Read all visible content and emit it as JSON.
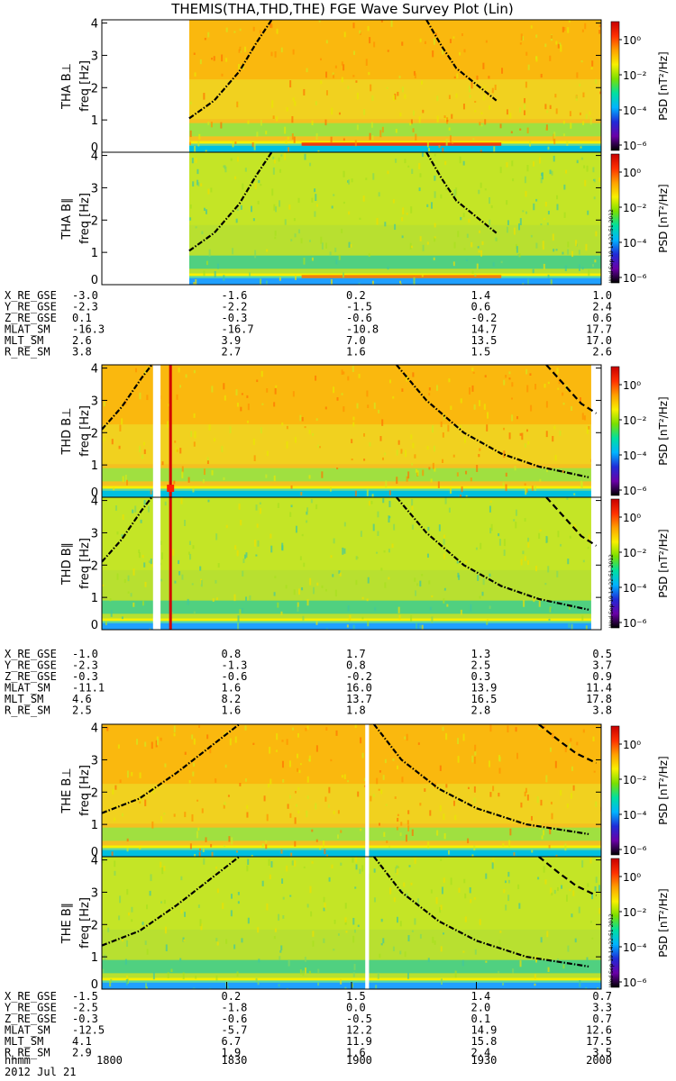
{
  "title": "THEMIS(THA,THD,THE) FGE Wave Survey Plot (Lin)",
  "colorbar": {
    "label": "PSD [nT²/Hz]",
    "ticks": [
      "10⁰",
      "10⁻²",
      "10⁻⁴",
      "10⁻⁶"
    ],
    "scale": "log",
    "stops": [
      "#000000",
      "#6a00a8",
      "#1f2bd8",
      "#00b4ff",
      "#00e0a0",
      "#7ae000",
      "#f8f000",
      "#ffa000",
      "#ff3000",
      "#c80000"
    ]
  },
  "stamp": "Wed Sep 19 14:22:51 2012",
  "time_axis": {
    "ticks": [
      "1800",
      "1830",
      "1900",
      "1930",
      "2000"
    ],
    "label": "hhmm",
    "date": "2012 Jul 21"
  },
  "orbit_row_labels": [
    "X_RE_GSE",
    "Y_RE_GSE",
    "Z_RE_GSE",
    "MLAT_SM",
    "MLT_SM",
    "R_RE_SM"
  ],
  "chart_data": [
    {
      "type": "heatmap",
      "probe": "THA",
      "panels": [
        {
          "ylabel": "THA B⊥",
          "unit": "freq [Hz]",
          "ylim": [
            0,
            4.1
          ],
          "yticks": [
            "0",
            "1",
            "2",
            "3",
            "4"
          ]
        },
        {
          "ylabel": "THA B∥",
          "unit": "freq [Hz]",
          "ylim": [
            0,
            4.1
          ],
          "yticks": [
            "0",
            "1",
            "2",
            "3",
            "4"
          ]
        }
      ],
      "data_start_fraction": 0.35,
      "strong_band_freq_hz": 0.25,
      "gyro_curves": [
        {
          "x": [
            0.35,
            0.45,
            0.55,
            0.62,
            0.68
          ],
          "y": [
            1.05,
            1.6,
            2.5,
            3.4,
            4.1
          ]
        },
        {
          "x": [
            1.3,
            1.36,
            1.42,
            1.5,
            1.58
          ],
          "y": [
            4.1,
            3.3,
            2.6,
            2.1,
            1.6
          ]
        }
      ],
      "orbit": [
        [
          "-3.0",
          "-1.6",
          "0.2",
          "1.4",
          "1.0"
        ],
        [
          "-2.3",
          "-2.2",
          "-1.5",
          "0.6",
          "2.4"
        ],
        [
          "0.1",
          "-0.3",
          "-0.6",
          "-0.2",
          "0.6"
        ],
        [
          "-16.3",
          "-16.7",
          "-10.8",
          "14.7",
          "17.7"
        ],
        [
          "2.6",
          "3.9",
          "7.0",
          "13.5",
          "17.0"
        ],
        [
          "3.8",
          "2.7",
          "1.6",
          "1.5",
          "2.6"
        ]
      ]
    },
    {
      "type": "heatmap",
      "probe": "THD",
      "panels": [
        {
          "ylabel": "THD B⊥",
          "unit": "freq [Hz]",
          "ylim": [
            0,
            4.1
          ],
          "yticks": [
            "0",
            "1",
            "2",
            "3",
            "4"
          ]
        },
        {
          "ylabel": "THD B∥",
          "unit": "freq [Hz]",
          "ylim": [
            0,
            4.1
          ],
          "yticks": [
            "0",
            "1",
            "2",
            "3",
            "4"
          ]
        }
      ],
      "gaps": [
        [
          0.205,
          0.235
        ],
        [
          1.96,
          2.0
        ]
      ],
      "spike": 0.275,
      "gyro_curves": [
        {
          "x": [
            0.0,
            0.08,
            0.16,
            0.2
          ],
          "y": [
            2.1,
            2.8,
            3.7,
            4.1
          ]
        },
        {
          "x": [
            1.18,
            1.3,
            1.45,
            1.6,
            1.75,
            1.95
          ],
          "y": [
            4.1,
            3.0,
            2.0,
            1.35,
            0.95,
            0.62
          ]
        },
        {
          "x": [
            1.78,
            1.85,
            1.92,
            1.98
          ],
          "y": [
            4.1,
            3.5,
            2.9,
            2.6
          ],
          "dashed": true
        }
      ],
      "orbit": [
        [
          "-1.0",
          "0.8",
          "1.7",
          "1.3",
          "0.5"
        ],
        [
          "-2.3",
          "-1.3",
          "0.8",
          "2.5",
          "3.7"
        ],
        [
          "-0.3",
          "-0.6",
          "-0.2",
          "0.3",
          "0.9"
        ],
        [
          "-11.1",
          "1.6",
          "16.0",
          "13.9",
          "11.4"
        ],
        [
          "4.6",
          "8.2",
          "13.7",
          "16.5",
          "17.8"
        ],
        [
          "2.5",
          "1.6",
          "1.8",
          "2.8",
          "3.8"
        ]
      ]
    },
    {
      "type": "heatmap",
      "probe": "THE",
      "panels": [
        {
          "ylabel": "THE B⊥",
          "unit": "freq [Hz]",
          "ylim": [
            0,
            4.1
          ],
          "yticks": [
            "0",
            "1",
            "2",
            "3",
            "4"
          ]
        },
        {
          "ylabel": "THE B∥",
          "unit": "freq [Hz]",
          "ylim": [
            0,
            4.1
          ],
          "yticks": [
            "0",
            "1",
            "2",
            "3",
            "4"
          ]
        }
      ],
      "gaps": [
        [
          1.055,
          1.07
        ]
      ],
      "gyro_curves": [
        {
          "x": [
            0.0,
            0.15,
            0.3,
            0.45,
            0.55
          ],
          "y": [
            1.35,
            1.8,
            2.6,
            3.5,
            4.1
          ]
        },
        {
          "x": [
            1.09,
            1.2,
            1.35,
            1.5,
            1.7,
            1.95
          ],
          "y": [
            4.1,
            3.0,
            2.1,
            1.5,
            1.0,
            0.7
          ]
        },
        {
          "x": [
            1.75,
            1.83,
            1.9,
            1.98
          ],
          "y": [
            4.1,
            3.6,
            3.2,
            2.9
          ],
          "dashed": true
        }
      ],
      "orbit": [
        [
          "-1.5",
          "0.2",
          "1.5",
          "1.4",
          "0.7"
        ],
        [
          "-2.5",
          "-1.8",
          "0.0",
          "2.0",
          "3.3"
        ],
        [
          "-0.3",
          "-0.6",
          "-0.5",
          "0.1",
          "0.7"
        ],
        [
          "-12.5",
          "-5.7",
          "12.2",
          "14.9",
          "12.6"
        ],
        [
          "4.1",
          "6.7",
          "11.9",
          "15.8",
          "17.5"
        ],
        [
          "2.9",
          "1.9",
          "1.6",
          "2.4",
          "3.5"
        ]
      ]
    }
  ]
}
